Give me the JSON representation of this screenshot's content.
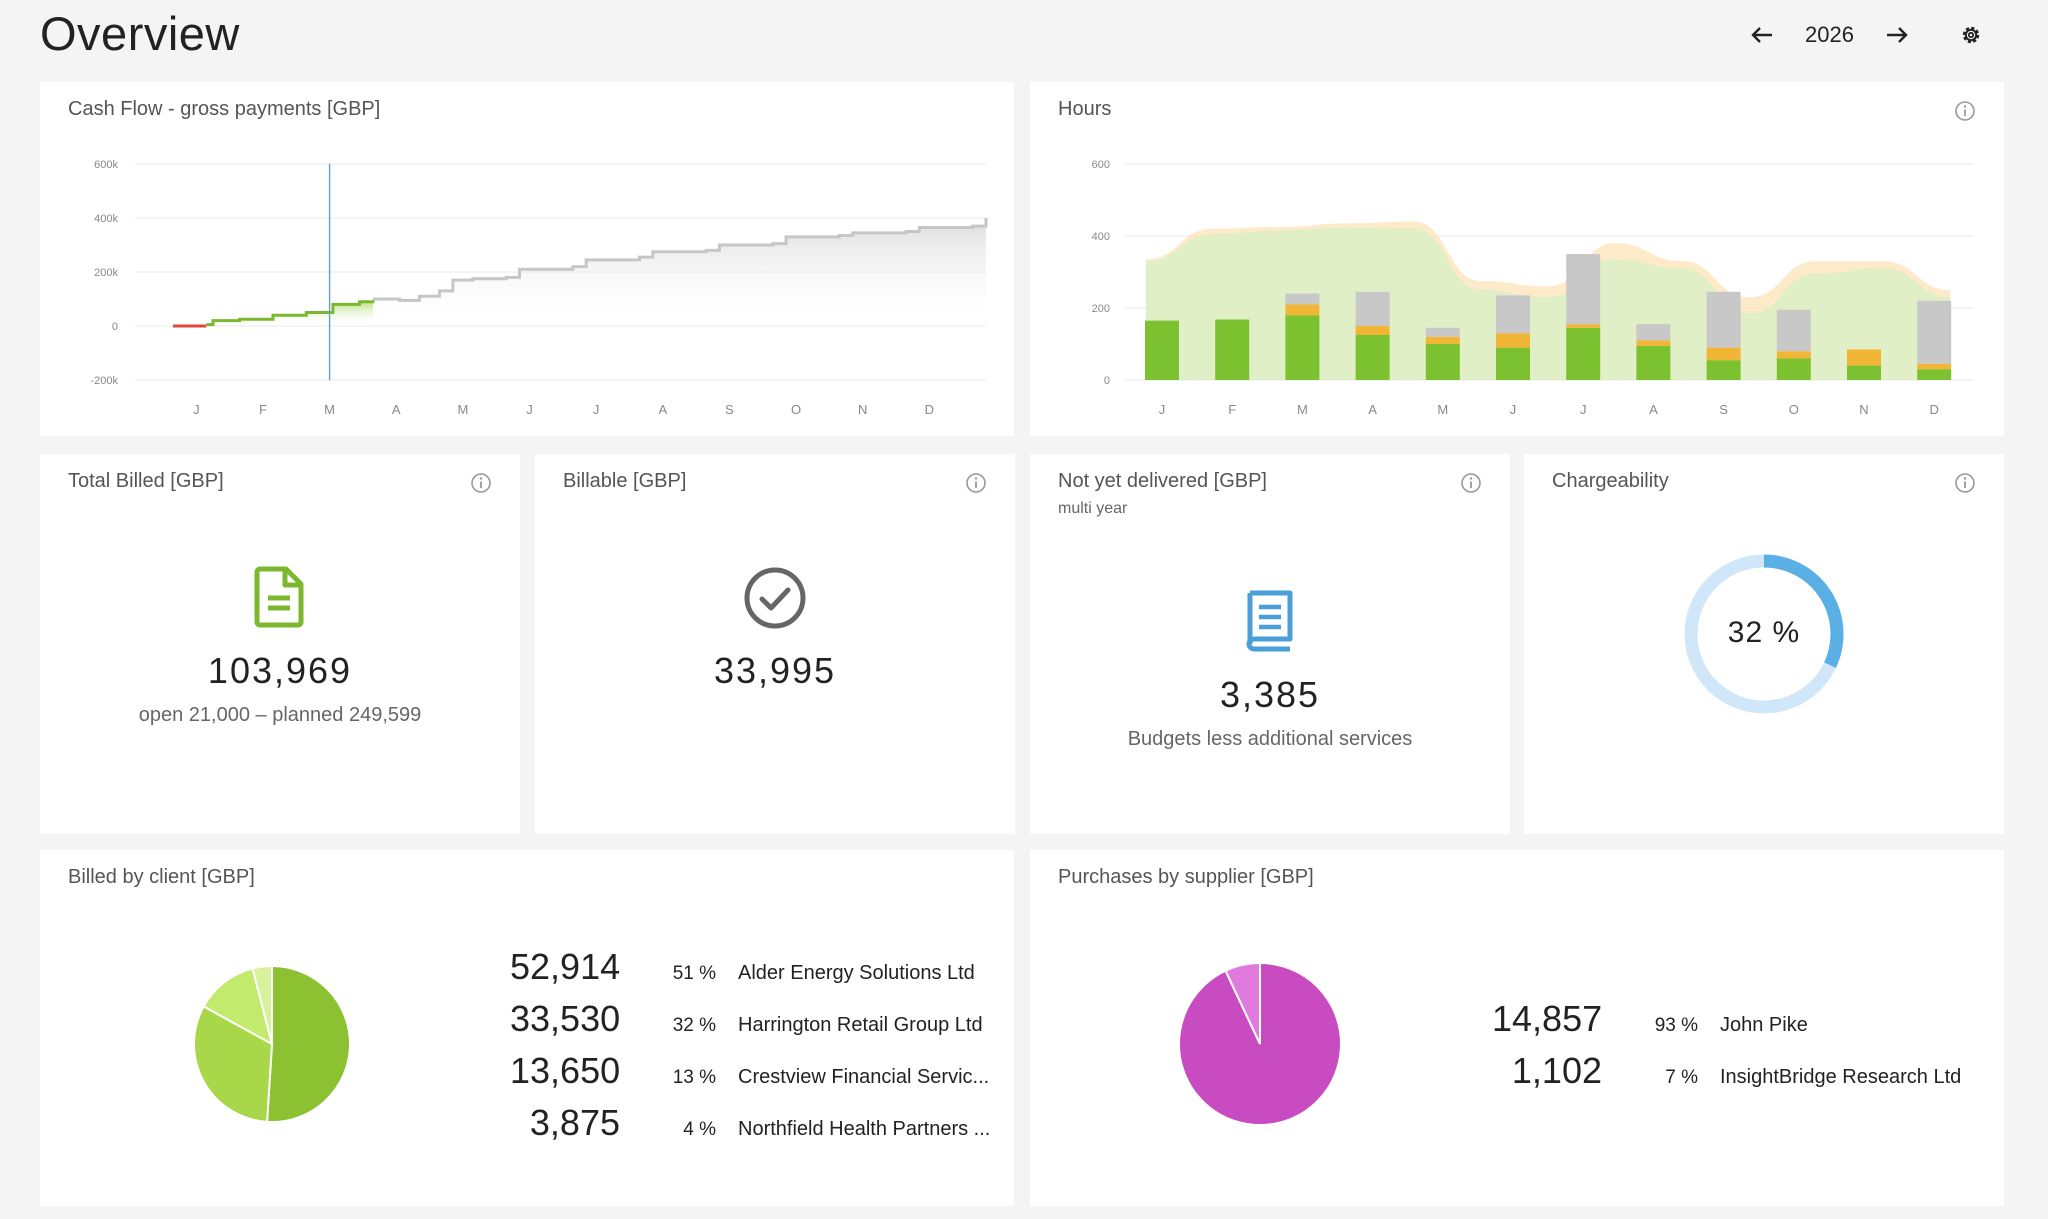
{
  "header": {
    "title": "Overview",
    "year": "2026"
  },
  "cashflow": {
    "title": "Cash Flow - gross payments [GBP]",
    "chart_data": {
      "type": "line",
      "categories": [
        "J",
        "F",
        "M",
        "A",
        "M",
        "J",
        "J",
        "A",
        "S",
        "O",
        "N",
        "D"
      ],
      "yticks": [
        "600k",
        "400k",
        "200k",
        "0",
        "-200k"
      ],
      "ylim": [
        -200000,
        600000
      ],
      "actual_negative": [
        [
          0.0,
          0
        ],
        [
          0.5,
          0
        ]
      ],
      "actual": [
        [
          0.5,
          5000
        ],
        [
          0.6,
          20000
        ],
        [
          1.0,
          25000
        ],
        [
          1.5,
          40000
        ],
        [
          2.0,
          50000
        ],
        [
          2.4,
          80000
        ],
        [
          2.8,
          90000
        ],
        [
          3.0,
          95000
        ]
      ],
      "forecast": [
        [
          3.0,
          100000
        ],
        [
          3.4,
          95000
        ],
        [
          3.7,
          110000
        ],
        [
          4.0,
          130000
        ],
        [
          4.2,
          170000
        ],
        [
          4.5,
          175000
        ],
        [
          5.0,
          180000
        ],
        [
          5.2,
          210000
        ],
        [
          6.0,
          220000
        ],
        [
          6.2,
          245000
        ],
        [
          7.0,
          255000
        ],
        [
          7.2,
          275000
        ],
        [
          8.0,
          280000
        ],
        [
          8.2,
          300000
        ],
        [
          9.0,
          305000
        ],
        [
          9.2,
          330000
        ],
        [
          10.0,
          335000
        ],
        [
          10.2,
          345000
        ],
        [
          11.0,
          350000
        ],
        [
          11.2,
          365000
        ],
        [
          12.0,
          370000
        ],
        [
          12.2,
          400000
        ]
      ],
      "current_marker": "M"
    }
  },
  "hours": {
    "title": "Hours",
    "chart_data": {
      "type": "bar",
      "categories": [
        "J",
        "F",
        "M",
        "A",
        "M",
        "J",
        "J",
        "A",
        "S",
        "O",
        "N",
        "D"
      ],
      "yticks": [
        "600",
        "400",
        "200",
        "0"
      ],
      "ylim": [
        0,
        600
      ],
      "series": [
        {
          "values": [
            165,
            168,
            180,
            125,
            100,
            90,
            145,
            95,
            55,
            60,
            40,
            30
          ]
        },
        {
          "values": [
            0,
            0,
            30,
            25,
            20,
            40,
            10,
            15,
            35,
            20,
            45,
            15
          ]
        },
        {
          "values": [
            0,
            0,
            30,
            95,
            25,
            105,
            195,
            45,
            155,
            115,
            0,
            175
          ]
        }
      ],
      "area_capacity": [
        335,
        420,
        425,
        435,
        440,
        275,
        260,
        380,
        330,
        230,
        330,
        330,
        250
      ],
      "area_target": [
        330,
        405,
        415,
        425,
        420,
        250,
        230,
        335,
        310,
        185,
        295,
        310,
        230
      ]
    }
  },
  "total_billed": {
    "title": "Total Billed [GBP]",
    "icon": "document-icon",
    "value": "103,969",
    "sub": "open 21,000 – planned 249,599",
    "color": "#7cb82f"
  },
  "billable": {
    "title": "Billable [GBP]",
    "icon": "check-circle-icon",
    "value": "33,995",
    "color": "#666666"
  },
  "not_delivered": {
    "title": "Not yet delivered [GBP]",
    "subtitle": "multi year",
    "icon": "book-icon",
    "value": "3,385",
    "sub": "Budgets less additional services",
    "color": "#4a9fd8"
  },
  "chargeability": {
    "title": "Chargeability",
    "value": "32 %",
    "fraction": 0.32,
    "color": "#5aafe4",
    "track": "#cfe7f8"
  },
  "billed_client": {
    "title": "Billed by client [GBP]",
    "chart_data": {
      "type": "pie",
      "slices": [
        {
          "value": "52,914",
          "pct": "51 %",
          "label": "Alder Energy Solutions Ltd",
          "share": 51,
          "color": "#8cc132"
        },
        {
          "value": "33,530",
          "pct": "32 %",
          "label": "Harrington Retail Group Ltd",
          "share": 32,
          "color": "#a8d84a"
        },
        {
          "value": "13,650",
          "pct": "13 %",
          "label": "Crestview Financial Servic...",
          "share": 13,
          "color": "#c2ea6c"
        },
        {
          "value": "3,875",
          "pct": "4 %",
          "label": "Northfield Health Partners ...",
          "share": 4,
          "color": "#d7f29a"
        }
      ]
    }
  },
  "purchases": {
    "title": "Purchases by supplier [GBP]",
    "chart_data": {
      "type": "pie",
      "slices": [
        {
          "value": "14,857",
          "pct": "93 %",
          "label": "John Pike",
          "share": 93,
          "color": "#c84bc2"
        },
        {
          "value": "1,102",
          "pct": "7 %",
          "label": "InsightBridge Research Ltd",
          "share": 7,
          "color": "#e07ade"
        }
      ]
    }
  }
}
